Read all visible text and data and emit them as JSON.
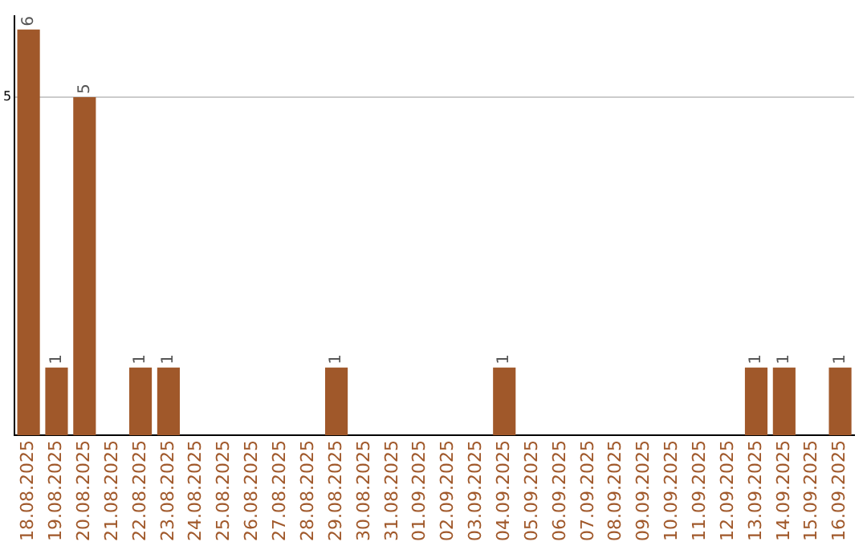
{
  "chart_data": {
    "type": "bar",
    "categories": [
      "18.08.2025",
      "19.08.2025",
      "20.08.2025",
      "21.08.2025",
      "22.08.2025",
      "23.08.2025",
      "24.08.2025",
      "25.08.2025",
      "26.08.2025",
      "27.08.2025",
      "28.08.2025",
      "29.08.2025",
      "30.08.2025",
      "31.08.2025",
      "01.09.2025",
      "02.09.2025",
      "03.09.2025",
      "04.09.2025",
      "05.09.2025",
      "06.09.2025",
      "07.09.2025",
      "08.09.2025",
      "09.09.2025",
      "10.09.2025",
      "11.09.2025",
      "12.09.2025",
      "13.09.2025",
      "14.09.2025",
      "15.09.2025",
      "16.09.2025"
    ],
    "values": [
      6,
      1,
      5,
      0,
      1,
      1,
      0,
      0,
      0,
      0,
      0,
      1,
      0,
      0,
      0,
      0,
      0,
      1,
      0,
      0,
      0,
      0,
      0,
      0,
      0,
      0,
      1,
      1,
      0,
      1
    ],
    "value_labels": [
      "6",
      "1",
      "5",
      null,
      "1",
      "1",
      null,
      null,
      null,
      null,
      null,
      "1",
      null,
      null,
      null,
      null,
      null,
      "1",
      null,
      null,
      null,
      null,
      null,
      null,
      null,
      null,
      "1",
      "1",
      null,
      "1"
    ],
    "color": "#a0582a",
    "ylim": [
      0,
      6.2
    ],
    "yticks": [
      5
    ],
    "grid": "y"
  }
}
